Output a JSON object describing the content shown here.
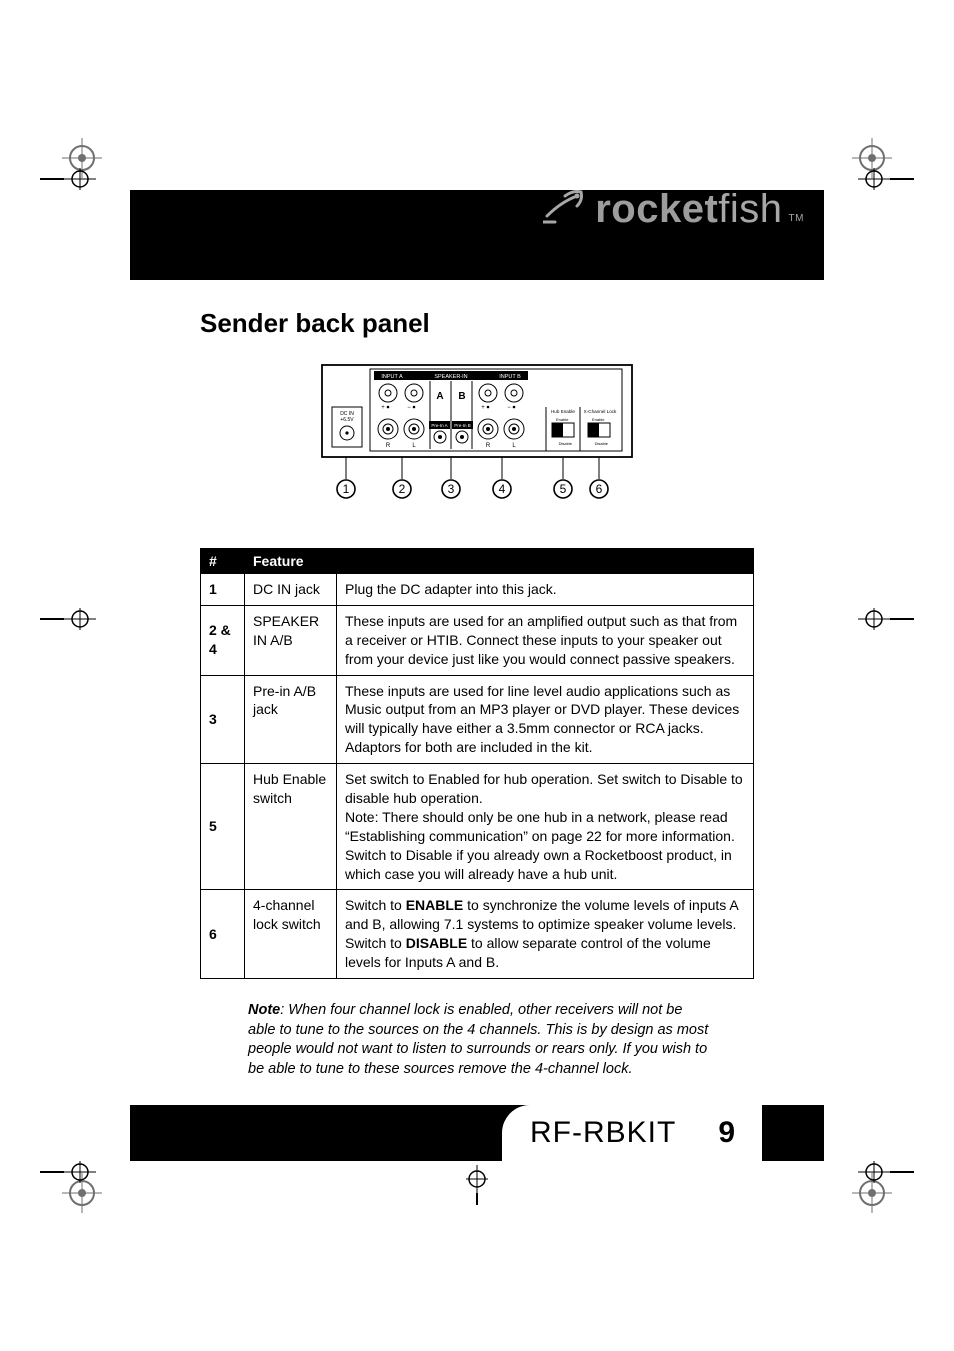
{
  "logo": {
    "text_bold": "rocket",
    "text_light": "fish",
    "tm": "TM"
  },
  "section_title": "Sender back panel",
  "diagram": {
    "labels": {
      "input_a": "INPUT A",
      "speaker_in": "SPEAKER-IN",
      "input_b": "INPUT B",
      "a": "A",
      "b": "B",
      "dc_in_l1": "DC IN",
      "dc_in_l2": "+6.5V",
      "prein_a": "Pre-In A",
      "prein_b": "Pre-In B",
      "r": "R",
      "l": "L",
      "hub_enable": "Hub Enable",
      "x_channel_lock": "X-Channel Lock",
      "enable": "Enable",
      "disable": "Disable"
    },
    "callouts": [
      "1",
      "2",
      "3",
      "4",
      "5",
      "6"
    ]
  },
  "table": {
    "headers": {
      "num": "#",
      "feature": "Feature",
      "desc": ""
    },
    "rows": [
      {
        "num": "1",
        "feature": "DC IN jack",
        "desc": "Plug the DC adapter into this jack."
      },
      {
        "num": "2 & 4",
        "feature": "SPEAKER IN A/B",
        "desc": "These inputs are used for an amplified output such as that from a receiver or HTIB. Connect these inputs to your speaker out from your device just like you would connect passive speakers."
      },
      {
        "num": "3",
        "feature": "Pre-in A/B jack",
        "desc": "These inputs are used for line level audio applications such as Music output from an MP3 player or DVD player. These devices will typically have either a 3.5mm connector or RCA jacks. Adaptors for both are included in the kit."
      },
      {
        "num": "5",
        "feature": "Hub Enable switch",
        "desc": "Set switch to Enabled for hub operation. Set switch to Disable to disable hub operation.\nNote: There should only be one hub in a network, please read “Establishing communication” on page 22 for more information.\nSwitch to Disable if you already own a Rocketboost product, in which case you will already have a hub unit."
      },
      {
        "num": "6",
        "feature": "4-channel lock switch",
        "desc_parts": [
          "Switch to ",
          "ENABLE",
          " to synchronize the volume levels of inputs A and B, allowing 7.1 systems to optimize speaker volume levels.\nSwitch to ",
          "DISABLE",
          " to allow separate control of the volume levels for Inputs A and B."
        ]
      }
    ]
  },
  "note": {
    "label": "Note",
    "text": ": When four channel lock is enabled, other receivers will not be able to tune to the sources on the 4 channels. This is by design as most people would not want to listen to surrounds or rears only. If you wish to be able to tune to these sources remove the 4-channel lock."
  },
  "footer": {
    "model": "RF-RBKIT",
    "page": "9"
  },
  "colors": {
    "black": "#000000",
    "white": "#ffffff",
    "logo_gray": "#a7a7aa",
    "mark_gray": "#6f6f6f"
  }
}
